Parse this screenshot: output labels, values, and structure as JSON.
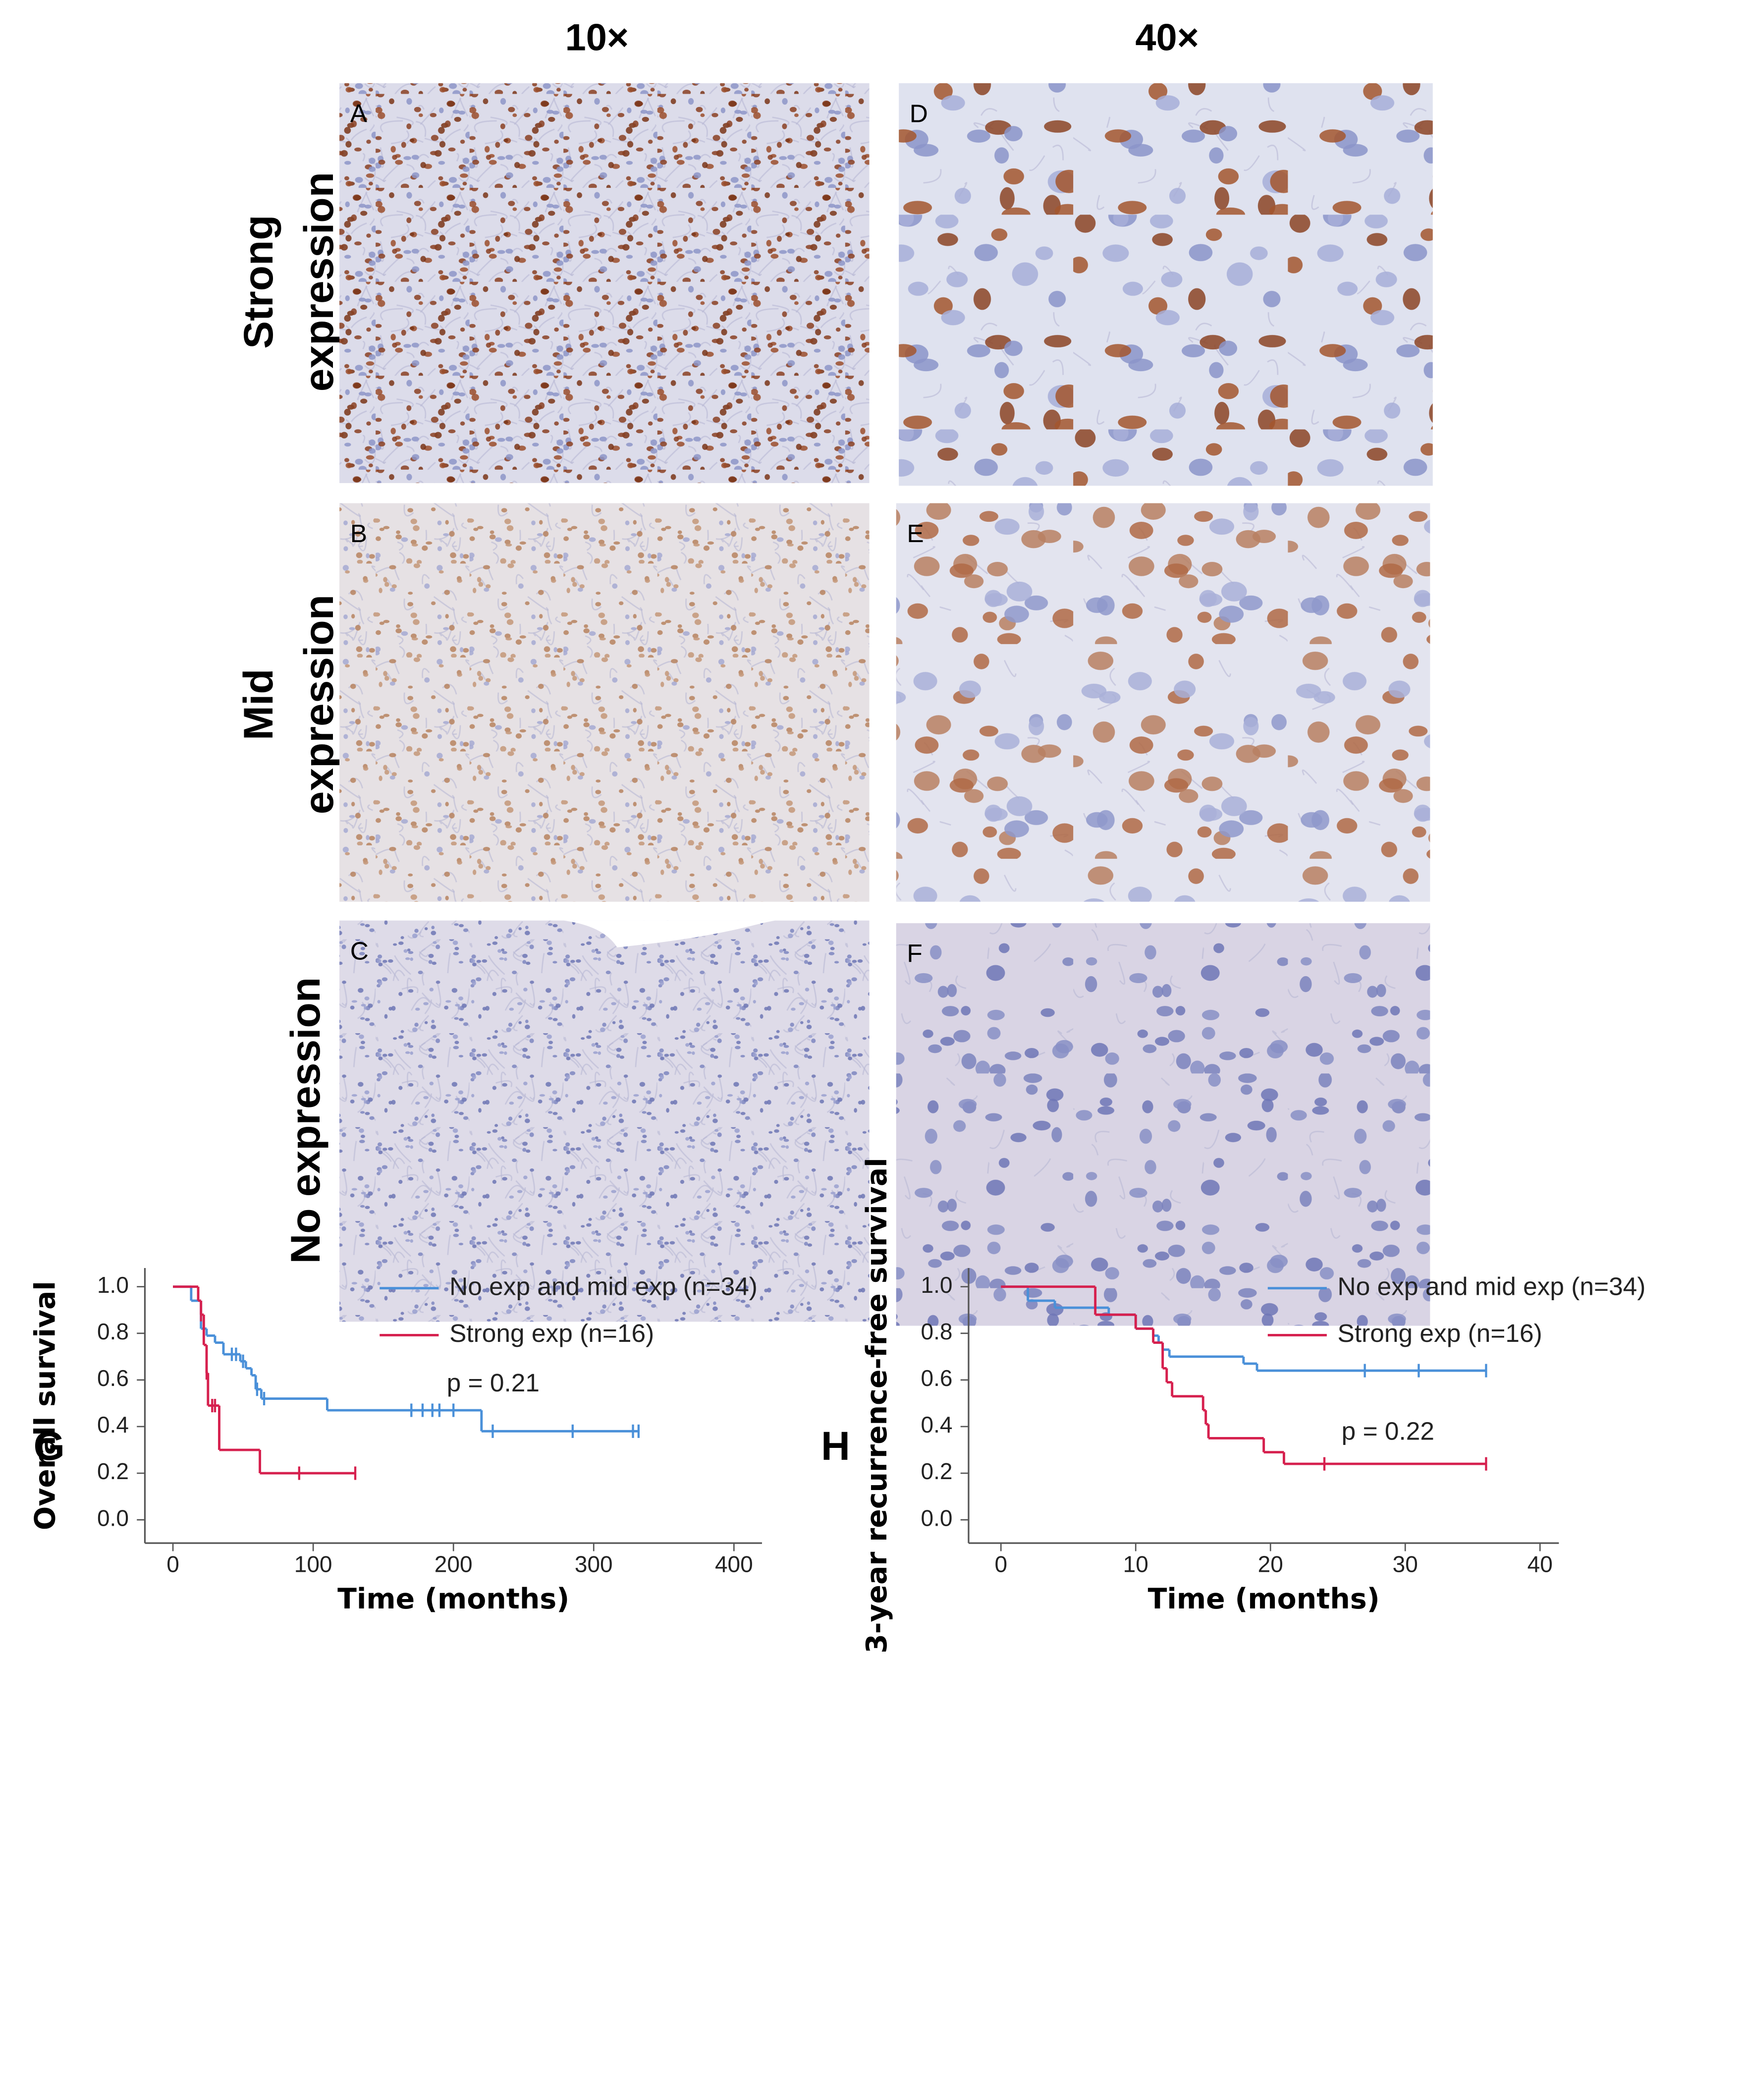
{
  "figure": {
    "column_headers": [
      "10×",
      "40×"
    ],
    "row_labels": [
      [
        "Strong",
        "expression"
      ],
      [
        "Mid",
        "expression"
      ],
      [
        "No expression"
      ]
    ],
    "panels": [
      "A",
      "B",
      "C",
      "D",
      "E",
      "F"
    ]
  },
  "chart_data": [
    {
      "type": "km",
      "panel_label": "G",
      "ylabel": "Overall survival",
      "xlabel": "Time (months)",
      "annotation": "p = 0.21",
      "xlim": [
        -20,
        420
      ],
      "xticks": [
        0,
        100,
        200,
        300,
        400
      ],
      "ylim": [
        -0.1,
        1.08
      ],
      "yticks": [
        {
          "value": 0,
          "label": "0.0"
        },
        0.2,
        0.4,
        0.6,
        0.8,
        {
          "value": 1,
          "label": "1.0"
        }
      ],
      "series": [
        {
          "name": "No exp and mid exp (n=34)",
          "color": "#4a90d9",
          "x": [
            0,
            13,
            20,
            24,
            30,
            36,
            48,
            52,
            56,
            59,
            63,
            110,
            220
          ],
          "values": [
            1.0,
            0.94,
            0.82,
            0.79,
            0.76,
            0.71,
            0.68,
            0.65,
            0.62,
            0.56,
            0.52,
            0.47,
            0.38
          ],
          "censored_x": [
            42,
            45,
            50,
            60,
            65,
            170,
            178,
            185,
            190,
            200,
            228,
            285,
            328,
            332
          ],
          "censored_values": [
            0.71,
            0.71,
            0.68,
            0.56,
            0.52,
            0.47,
            0.47,
            0.47,
            0.47,
            0.47,
            0.38,
            0.38,
            0.38,
            0.38
          ]
        },
        {
          "name": "Strong exp (n=16)",
          "color": "#d6204e",
          "x": [
            0,
            18,
            20,
            22,
            24,
            25,
            33,
            62
          ],
          "values": [
            1.0,
            0.94,
            0.88,
            0.75,
            0.63,
            0.49,
            0.3,
            0.2
          ],
          "censored_x": [
            20,
            24,
            28,
            30,
            90,
            130
          ],
          "censored_values": [
            0.88,
            0.63,
            0.49,
            0.49,
            0.2,
            0.2
          ]
        }
      ]
    },
    {
      "type": "km",
      "panel_label": "H",
      "ylabel": "3-year recurrence-free survival",
      "xlabel": "Time (months)",
      "annotation": "p = 0.22",
      "xlim": [
        -2.4,
        41.4
      ],
      "xticks": [
        0,
        10,
        20,
        30,
        40
      ],
      "ylim": [
        -0.1,
        1.08
      ],
      "yticks": [
        {
          "value": 0,
          "label": "0.0"
        },
        0.2,
        0.4,
        0.6,
        0.8,
        {
          "value": 1,
          "label": "1.0"
        }
      ],
      "series": [
        {
          "name": "No exp and mid exp (n=34)",
          "color": "#4a90d9",
          "x": [
            0,
            2,
            4,
            8,
            10,
            11.3,
            11.7,
            12,
            12.5,
            18,
            19
          ],
          "values": [
            1.0,
            0.94,
            0.91,
            0.88,
            0.82,
            0.79,
            0.76,
            0.73,
            0.7,
            0.67,
            0.64
          ],
          "censored_x": [
            27,
            31,
            36
          ],
          "censored_values": [
            0.64,
            0.64,
            0.64
          ]
        },
        {
          "name": "Strong exp (n=16)",
          "color": "#d6204e",
          "x": [
            0,
            7,
            10,
            11.3,
            12,
            12.3,
            12.7,
            15,
            15.2,
            15.4,
            19.5,
            21
          ],
          "values": [
            1.0,
            0.88,
            0.82,
            0.76,
            0.65,
            0.59,
            0.53,
            0.47,
            0.41,
            0.35,
            0.29,
            0.24
          ],
          "censored_x": [
            24,
            36
          ],
          "censored_values": [
            0.24,
            0.24
          ]
        }
      ]
    }
  ]
}
